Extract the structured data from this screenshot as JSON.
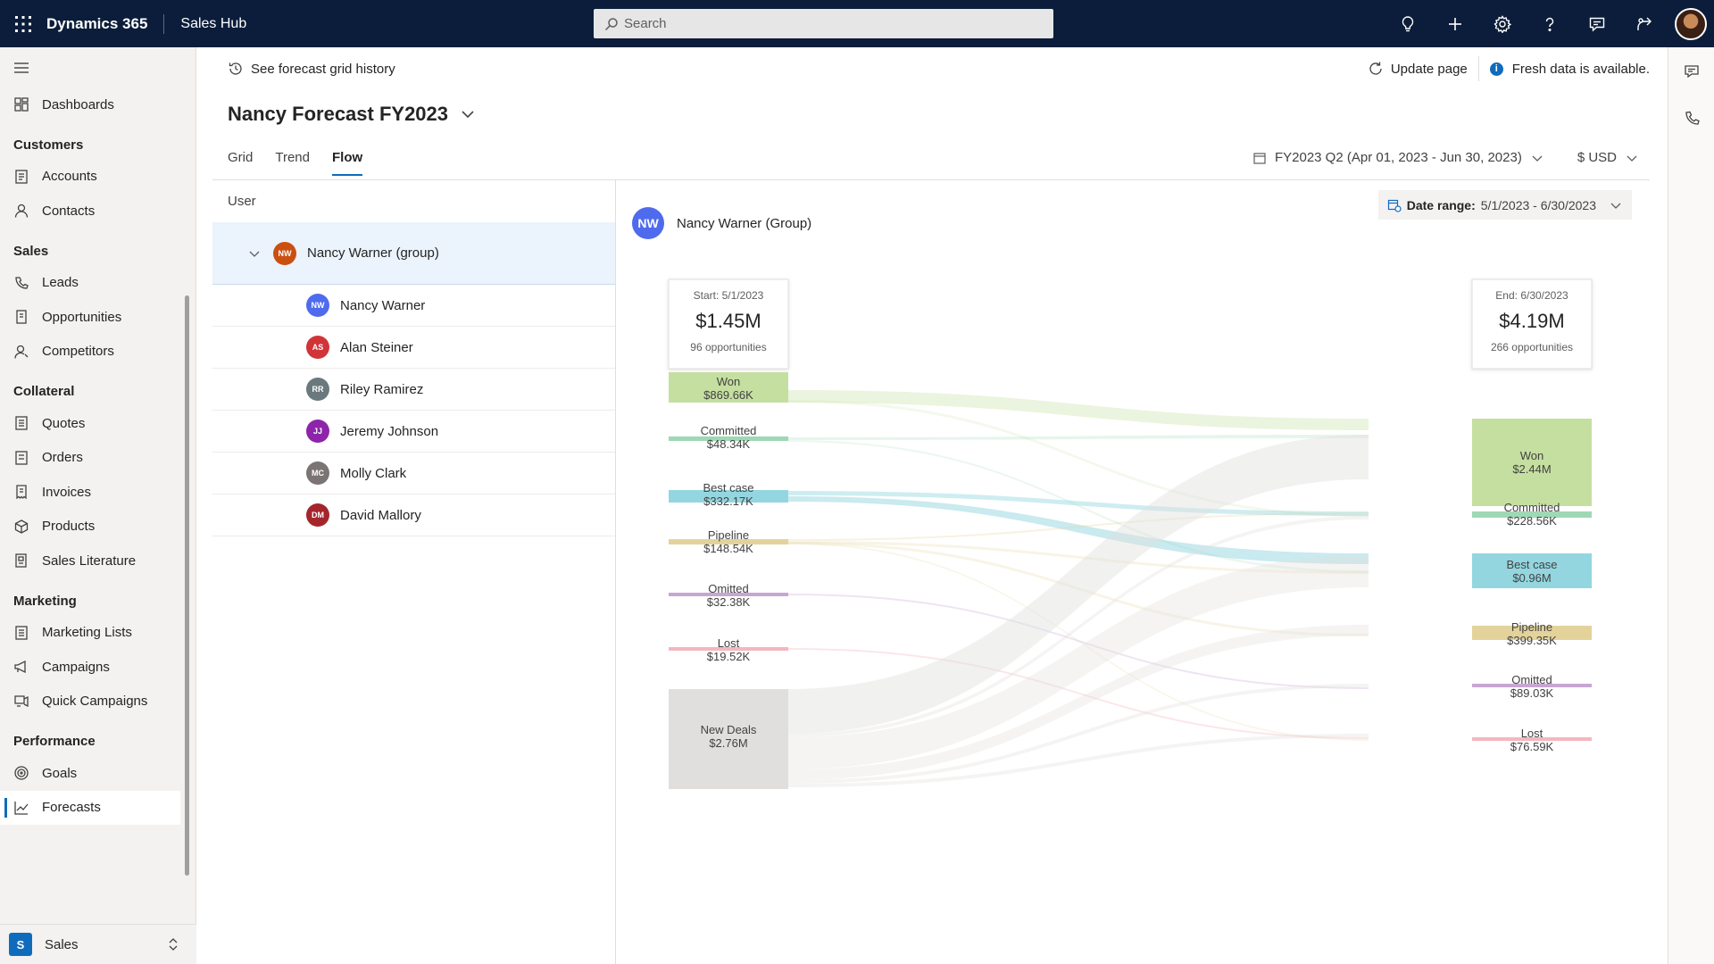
{
  "app": {
    "brand": "Dynamics 365",
    "name": "Sales Hub"
  },
  "search": {
    "placeholder": "Search"
  },
  "nav": {
    "items_top": [
      {
        "label": "Dashboards",
        "icon": "dashboard-icon"
      }
    ],
    "sections": [
      {
        "title": "Customers",
        "items": [
          {
            "label": "Accounts"
          },
          {
            "label": "Contacts"
          }
        ]
      },
      {
        "title": "Sales",
        "items": [
          {
            "label": "Leads"
          },
          {
            "label": "Opportunities"
          },
          {
            "label": "Competitors"
          }
        ]
      },
      {
        "title": "Collateral",
        "items": [
          {
            "label": "Quotes"
          },
          {
            "label": "Orders"
          },
          {
            "label": "Invoices"
          },
          {
            "label": "Products"
          },
          {
            "label": "Sales Literature"
          }
        ]
      },
      {
        "title": "Marketing",
        "items": [
          {
            "label": "Marketing Lists"
          },
          {
            "label": "Campaigns"
          },
          {
            "label": "Quick Campaigns"
          }
        ]
      },
      {
        "title": "Performance",
        "items": [
          {
            "label": "Goals"
          },
          {
            "label": "Forecasts"
          }
        ]
      }
    ],
    "area": {
      "badge": "S",
      "label": "Sales"
    }
  },
  "cmdbar": {
    "history": "See forecast grid history",
    "update": "Update page",
    "fresh": "Fresh data is available."
  },
  "page": {
    "title": "Nancy Forecast FY2023"
  },
  "tabs": [
    {
      "label": "Grid"
    },
    {
      "label": "Trend"
    },
    {
      "label": "Flow"
    }
  ],
  "period": {
    "label": "FY2023 Q2 (Apr 01, 2023 - Jun 30, 2023)",
    "currency": "$ USD"
  },
  "userpane": {
    "header": "User",
    "group": {
      "initials": "NW",
      "name": "Nancy Warner (group)",
      "color": "#ca5010"
    },
    "users": [
      {
        "initials": "NW",
        "name": "Nancy Warner",
        "color": "#4f6bed"
      },
      {
        "initials": "AS",
        "name": "Alan Steiner",
        "color": "#d13438"
      },
      {
        "initials": "RR",
        "name": "Riley Ramirez",
        "color": "#69797e"
      },
      {
        "initials": "JJ",
        "name": "Jeremy Johnson",
        "color": "#8e24aa"
      },
      {
        "initials": "MC",
        "name": "Molly Clark",
        "color": "#7a7574"
      },
      {
        "initials": "DM",
        "name": "David Mallory",
        "color": "#a4262c"
      }
    ]
  },
  "flow": {
    "user": {
      "initials": "NW",
      "name": "Nancy Warner (Group)",
      "color": "#4f6bed"
    },
    "date_range_label": "Date range:",
    "date_range_value": "5/1/2023 - 6/30/2023",
    "start": {
      "title": "Start: 5/1/2023",
      "amount": "$1.45M",
      "sub": "96 opportunities"
    },
    "end": {
      "title": "End: 6/30/2023",
      "amount": "$4.19M",
      "sub": "266 opportunities"
    },
    "left_nodes": [
      {
        "label": "Won",
        "value": "$869.66K",
        "color": "#c5dfa0"
      },
      {
        "label": "Committed",
        "value": "$48.34K",
        "color": "#9fd8b4"
      },
      {
        "label": "Best case",
        "value": "$332.17K",
        "color": "#93d6e0"
      },
      {
        "label": "Pipeline",
        "value": "$148.54K",
        "color": "#e3d39b"
      },
      {
        "label": "Omitted",
        "value": "$32.38K",
        "color": "#c7a6d4"
      },
      {
        "label": "Lost",
        "value": "$19.52K",
        "color": "#f4b6c0"
      },
      {
        "label": "New Deals",
        "value": "$2.76M",
        "color": "#e1dfdd"
      }
    ],
    "right_nodes": [
      {
        "label": "Won",
        "value": "$2.44M",
        "color": "#c5dfa0"
      },
      {
        "label": "Committed",
        "value": "$228.56K",
        "color": "#9fd8b4"
      },
      {
        "label": "Best case",
        "value": "$0.96M",
        "color": "#93d6e0"
      },
      {
        "label": "Pipeline",
        "value": "$399.35K",
        "color": "#e3d39b"
      },
      {
        "label": "Omitted",
        "value": "$89.03K",
        "color": "#c7a6d4"
      },
      {
        "label": "Lost",
        "value": "$76.59K",
        "color": "#f4b6c0"
      }
    ]
  },
  "colors": {
    "topbar": "#0b1d3a",
    "accent": "#0f6cbd"
  }
}
